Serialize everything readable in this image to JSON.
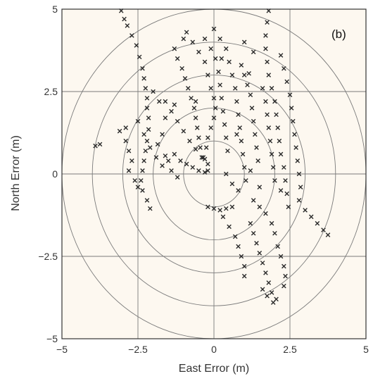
{
  "chart_data": {
    "type": "scatter",
    "title": "",
    "panel_label": "(b)",
    "xlabel": "East Error (m)",
    "ylabel": "North Error (m)",
    "xlim": [
      -5,
      5
    ],
    "ylim": [
      -5,
      5
    ],
    "x_ticks": [
      -5,
      -2.5,
      0,
      2.5,
      5
    ],
    "y_ticks": [
      -5,
      -2.5,
      0,
      2.5,
      5
    ],
    "x_tick_labels": [
      "−5",
      "−2.5",
      "0",
      "2.5",
      "5"
    ],
    "y_tick_labels": [
      "−5",
      "−2.5",
      "0",
      "2.5",
      "5"
    ],
    "grid": true,
    "range_rings": [
      1,
      2,
      3,
      4,
      5
    ],
    "marker": "x",
    "colors": {
      "background": "#fdf8f0",
      "marker": "#2a2a2a",
      "grid": "#7a7a7a",
      "axis": "#333333"
    },
    "series": [
      {
        "values": [
          [
            -3.05,
            4.95
          ],
          [
            -2.95,
            4.7
          ],
          [
            -2.85,
            4.5
          ],
          [
            -2.7,
            4.2
          ],
          [
            -2.55,
            3.9
          ],
          [
            -2.45,
            3.55
          ],
          [
            -2.35,
            3.2
          ],
          [
            -2.3,
            2.9
          ],
          [
            -2.25,
            2.6
          ],
          [
            -2.2,
            2.3
          ],
          [
            -2.2,
            2.0
          ],
          [
            -2.15,
            1.7
          ],
          [
            -2.15,
            1.35
          ],
          [
            -2.2,
            1.0
          ],
          [
            -2.25,
            0.7
          ],
          [
            -2.3,
            0.4
          ],
          [
            -2.35,
            0.1
          ],
          [
            -2.4,
            -0.2
          ],
          [
            -2.35,
            -0.5
          ],
          [
            -2.2,
            -0.8
          ],
          [
            -2.1,
            -1.05
          ],
          [
            -2.5,
            1.6
          ],
          [
            -2.3,
            1.2
          ],
          [
            -2.1,
            0.8
          ],
          [
            -1.9,
            0.5
          ],
          [
            -1.7,
            0.25
          ],
          [
            -1.5,
            0.4
          ],
          [
            -1.3,
            0.6
          ],
          [
            -1.1,
            0.4
          ],
          [
            -0.9,
            0.3
          ],
          [
            -0.7,
            0.2
          ],
          [
            -0.5,
            0.1
          ],
          [
            -0.3,
            0.05
          ],
          [
            -3.1,
            1.3
          ],
          [
            -2.9,
            1.0
          ],
          [
            -2.8,
            0.7
          ],
          [
            -2.7,
            0.4
          ],
          [
            -2.8,
            0.1
          ],
          [
            -2.6,
            -0.2
          ],
          [
            -2.5,
            -0.4
          ],
          [
            -3.9,
            0.85
          ],
          [
            -3.75,
            0.9
          ],
          [
            -1.3,
            3.8
          ],
          [
            -1.2,
            3.5
          ],
          [
            -1.05,
            3.2
          ],
          [
            -0.95,
            2.9
          ],
          [
            -0.85,
            2.6
          ],
          [
            -0.75,
            2.3
          ],
          [
            -0.65,
            2.0
          ],
          [
            -0.6,
            1.7
          ],
          [
            -0.55,
            1.4
          ],
          [
            -0.5,
            1.1
          ],
          [
            -0.45,
            0.8
          ],
          [
            -0.35,
            0.5
          ],
          [
            -1.6,
            2.2
          ],
          [
            -1.4,
            1.9
          ],
          [
            -1.2,
            1.6
          ],
          [
            -1.0,
            1.3
          ],
          [
            -0.8,
            1.0
          ],
          [
            -0.6,
            0.75
          ],
          [
            -0.4,
            0.5
          ],
          [
            -0.2,
            0.3
          ],
          [
            -2.0,
            2.5
          ],
          [
            -1.8,
            2.2
          ],
          [
            -1.6,
            1.7
          ],
          [
            -1.7,
            1.2
          ],
          [
            -1.85,
            0.9
          ],
          [
            -1.6,
            0.55
          ],
          [
            -1.4,
            0.1
          ],
          [
            -1.2,
            -0.1
          ],
          [
            -0.9,
            4.3
          ],
          [
            -0.7,
            4.0
          ],
          [
            -0.5,
            3.7
          ],
          [
            -0.3,
            3.4
          ],
          [
            -0.2,
            3.0
          ],
          [
            -0.1,
            2.6
          ],
          [
            0.0,
            2.3
          ],
          [
            0.05,
            2.0
          ],
          [
            0.0,
            1.7
          ],
          [
            -0.1,
            1.4
          ],
          [
            -0.2,
            1.1
          ],
          [
            -0.25,
            0.8
          ],
          [
            -0.3,
            0.45
          ],
          [
            -0.2,
            0.1
          ],
          [
            -0.3,
            4.1
          ],
          [
            -0.1,
            3.8
          ],
          [
            0.05,
            3.5
          ],
          [
            0.15,
            3.1
          ],
          [
            0.2,
            2.7
          ],
          [
            0.25,
            2.3
          ],
          [
            0.3,
            1.9
          ],
          [
            0.35,
            1.5
          ],
          [
            0.4,
            1.1
          ],
          [
            0.45,
            0.7
          ],
          [
            0.0,
            4.4
          ],
          [
            0.2,
            4.1
          ],
          [
            0.4,
            3.8
          ],
          [
            0.5,
            3.4
          ],
          [
            0.6,
            3.0
          ],
          [
            0.7,
            2.6
          ],
          [
            0.75,
            2.2
          ],
          [
            0.8,
            1.8
          ],
          [
            0.85,
            1.4
          ],
          [
            0.9,
            1.0
          ],
          [
            0.95,
            0.6
          ],
          [
            1.0,
            0.2
          ],
          [
            1.05,
            -0.2
          ],
          [
            0.9,
            3.3
          ],
          [
            1.0,
            3.0
          ],
          [
            1.1,
            2.7
          ],
          [
            1.2,
            2.4
          ],
          [
            1.25,
            2.0
          ],
          [
            1.3,
            1.6
          ],
          [
            1.35,
            1.2
          ],
          [
            1.4,
            0.8
          ],
          [
            1.45,
            0.4
          ],
          [
            1.6,
            2.6
          ],
          [
            1.7,
            2.2
          ],
          [
            1.75,
            1.8
          ],
          [
            1.8,
            1.4
          ],
          [
            1.85,
            1.0
          ],
          [
            1.9,
            0.6
          ],
          [
            1.95,
            0.2
          ],
          [
            2.0,
            -0.2
          ],
          [
            1.8,
            4.95
          ],
          [
            1.75,
            4.6
          ],
          [
            1.7,
            4.2
          ],
          [
            1.7,
            3.8
          ],
          [
            1.75,
            3.4
          ],
          [
            1.8,
            3.0
          ],
          [
            1.9,
            2.6
          ],
          [
            2.0,
            2.2
          ],
          [
            2.05,
            1.8
          ],
          [
            2.1,
            1.4
          ],
          [
            2.15,
            1.0
          ],
          [
            2.2,
            0.6
          ],
          [
            2.3,
            0.2
          ],
          [
            2.35,
            -0.2
          ],
          [
            2.4,
            -0.6
          ],
          [
            2.45,
            -1.0
          ],
          [
            2.2,
            3.6
          ],
          [
            2.3,
            3.2
          ],
          [
            2.4,
            2.8
          ],
          [
            2.5,
            2.4
          ],
          [
            2.55,
            2.0
          ],
          [
            2.6,
            1.6
          ],
          [
            2.65,
            1.2
          ],
          [
            2.7,
            0.8
          ],
          [
            2.75,
            0.4
          ],
          [
            2.8,
            0.0
          ],
          [
            2.85,
            -0.4
          ],
          [
            2.8,
            -0.8
          ],
          [
            3.0,
            -1.1
          ],
          [
            3.2,
            -1.3
          ],
          [
            3.4,
            -1.5
          ],
          [
            3.6,
            -1.7
          ],
          [
            3.75,
            -1.85
          ],
          [
            -0.2,
            -1.0
          ],
          [
            0.0,
            -1.05
          ],
          [
            0.2,
            -1.1
          ],
          [
            0.4,
            -1.05
          ],
          [
            0.6,
            -1.0
          ],
          [
            0.3,
            -1.3
          ],
          [
            0.5,
            -1.6
          ],
          [
            0.7,
            -1.9
          ],
          [
            0.8,
            -2.2
          ],
          [
            0.9,
            -2.5
          ],
          [
            1.0,
            -2.8
          ],
          [
            1.0,
            -3.1
          ],
          [
            1.2,
            -1.5
          ],
          [
            1.3,
            -1.8
          ],
          [
            1.4,
            -2.1
          ],
          [
            1.5,
            -2.4
          ],
          [
            1.6,
            -2.7
          ],
          [
            1.7,
            -3.0
          ],
          [
            1.8,
            -3.3
          ],
          [
            1.9,
            -3.6
          ],
          [
            1.95,
            -3.9
          ],
          [
            1.6,
            -3.5
          ],
          [
            1.75,
            -3.7
          ],
          [
            2.05,
            -3.8
          ],
          [
            2.1,
            -2.2
          ],
          [
            2.2,
            -2.5
          ],
          [
            2.3,
            -2.8
          ],
          [
            2.35,
            -3.1
          ],
          [
            2.3,
            -3.4
          ],
          [
            1.3,
            -0.8
          ],
          [
            1.5,
            -1.0
          ],
          [
            1.7,
            -1.2
          ],
          [
            1.9,
            -1.5
          ],
          [
            2.0,
            -1.8
          ],
          [
            0.4,
            0.0
          ],
          [
            0.6,
            -0.3
          ],
          [
            0.8,
            -0.5
          ],
          [
            1.2,
            0.1
          ],
          [
            1.5,
            -0.4
          ],
          [
            -1.0,
            4.1
          ],
          [
            1.0,
            4.0
          ],
          [
            1.3,
            3.7
          ],
          [
            -1.3,
            2.1
          ],
          [
            -2.9,
            1.4
          ],
          [
            0.25,
            3.5
          ],
          [
            2.2,
            -0.5
          ],
          [
            -0.6,
            2.2
          ],
          [
            0.75,
            1.2
          ],
          [
            1.15,
            3.05
          ]
        ]
      }
    ]
  }
}
